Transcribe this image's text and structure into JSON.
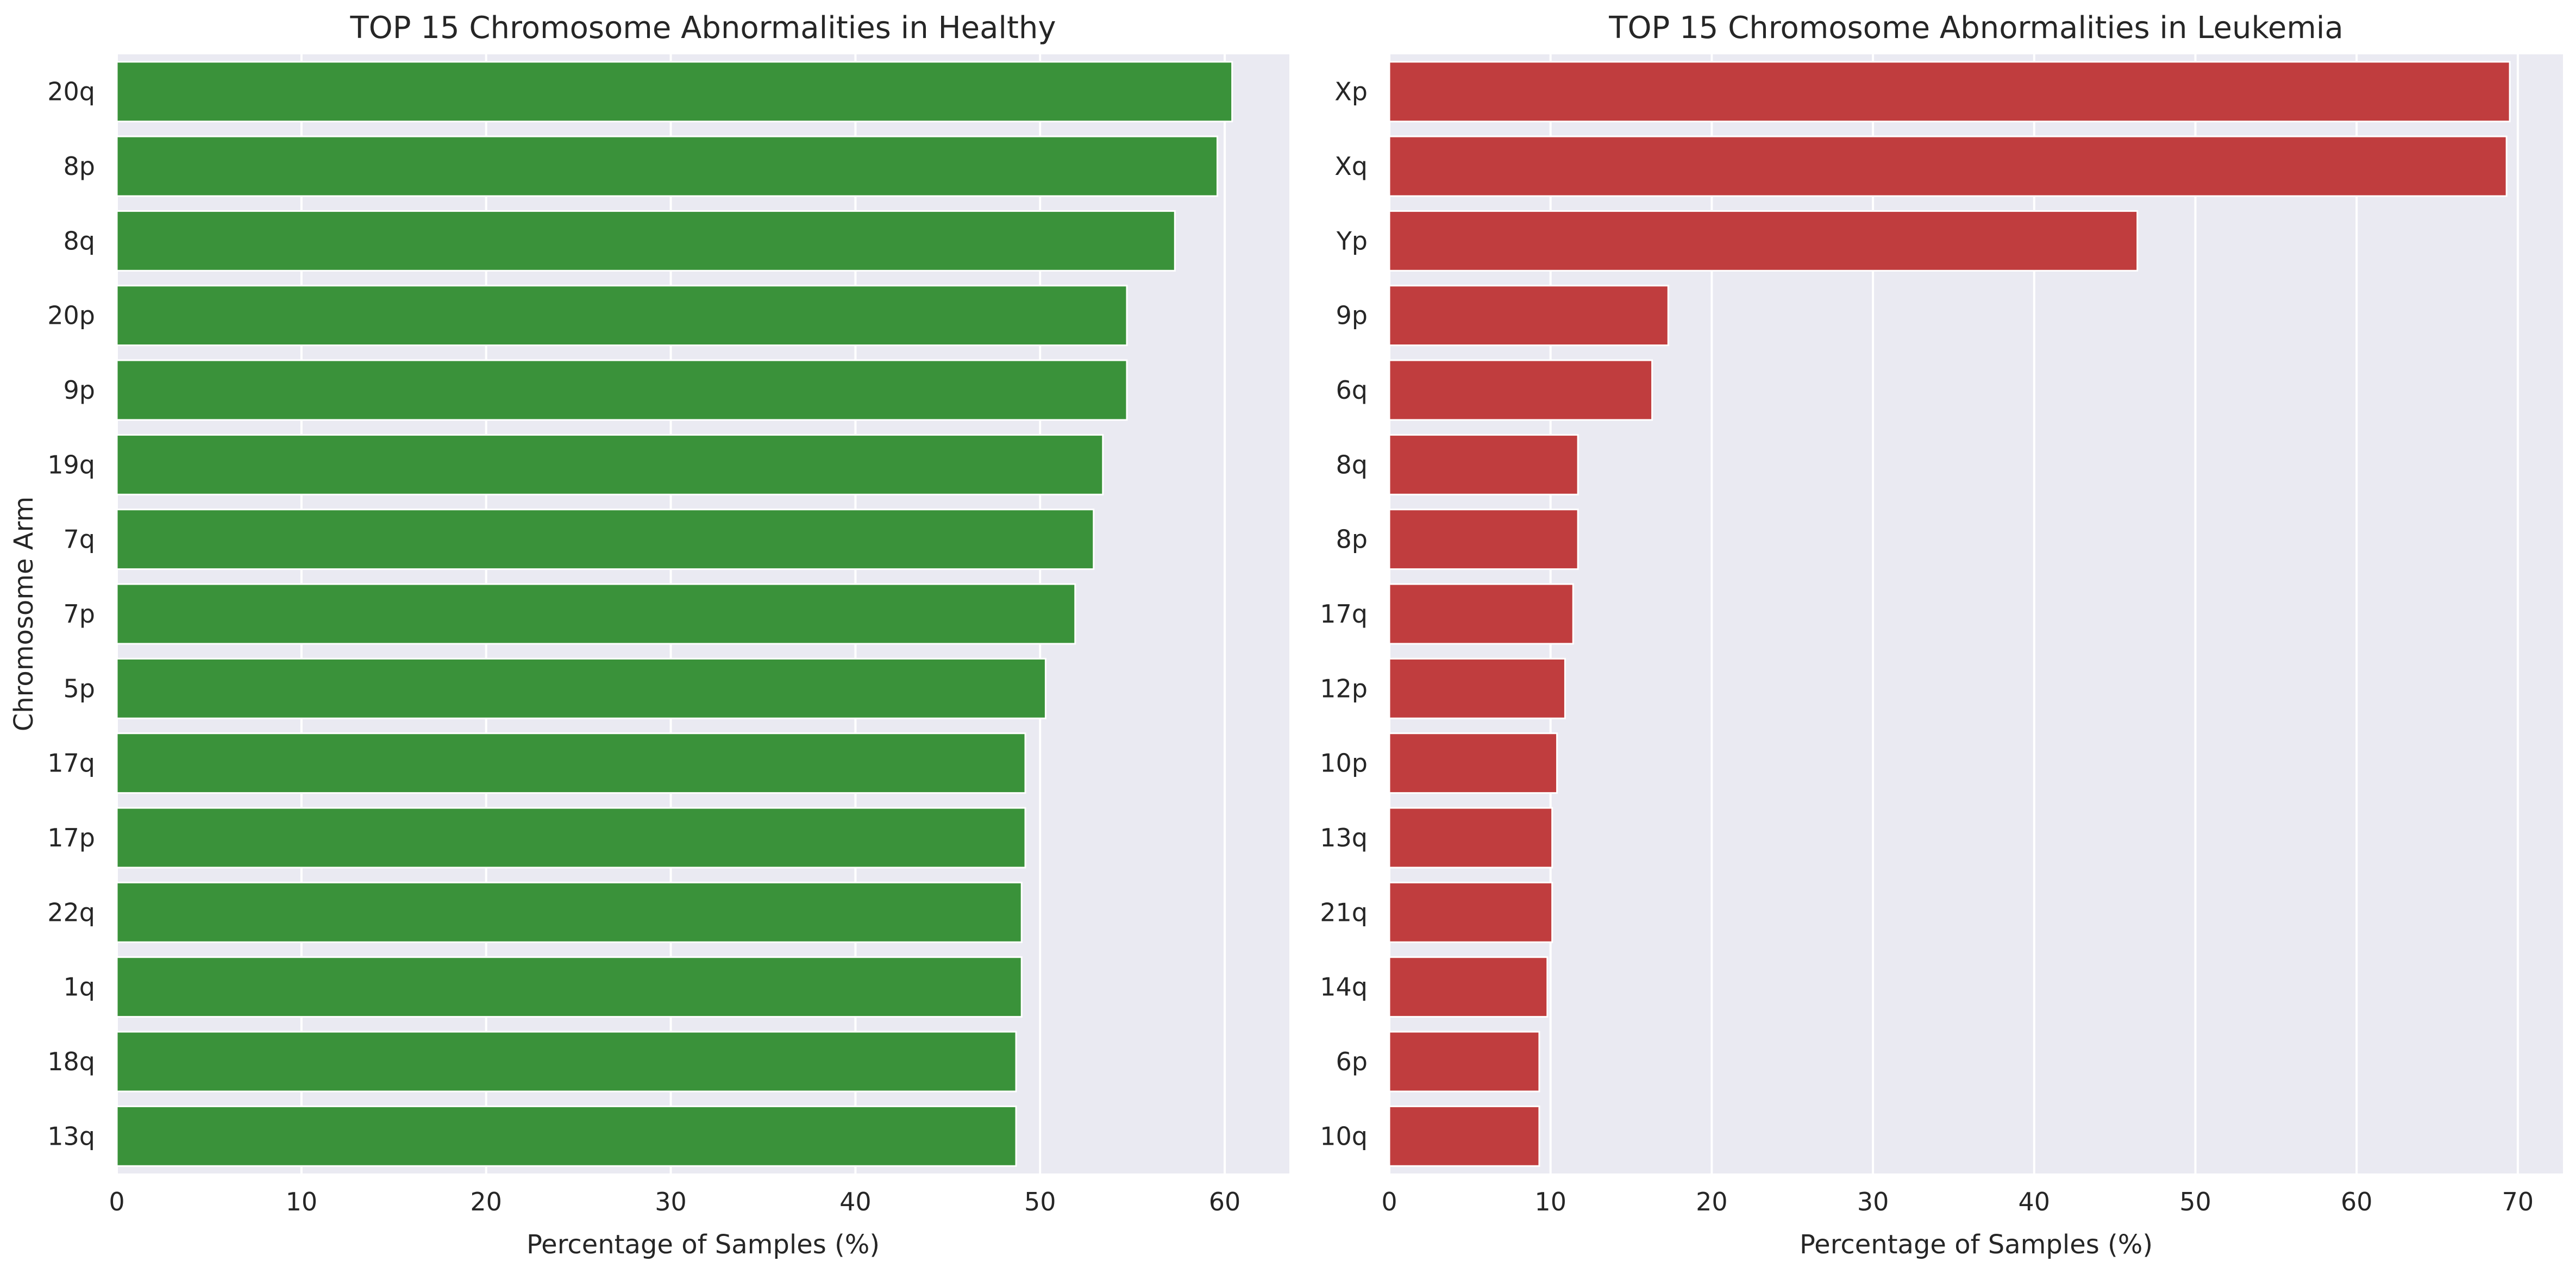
{
  "colors": {
    "healthy_bar": "#3a923a",
    "leukemia_bar": "#c03d3e",
    "plot_background": "#eaeaf2",
    "grid": "#ffffff",
    "text": "#262626"
  },
  "chart_data": [
    {
      "type": "bar",
      "orientation": "horizontal",
      "title": "TOP 15 Chromosome Abnormalities in Healthy",
      "xlabel": "Percentage of Samples (%)",
      "ylabel": "Chromosome Arm",
      "xlim": [
        0,
        63.5
      ],
      "xticks": [
        0,
        10,
        20,
        30,
        40,
        50,
        60
      ],
      "grid": true,
      "bar_color": "#3a923a",
      "categories": [
        "20q",
        "8p",
        "8q",
        "20p",
        "9p",
        "19q",
        "7q",
        "7p",
        "5p",
        "17q",
        "17p",
        "22q",
        "1q",
        "18q",
        "13q"
      ],
      "values": [
        60.4,
        59.6,
        57.3,
        54.7,
        54.7,
        53.4,
        52.9,
        51.9,
        50.3,
        49.2,
        49.2,
        49.0,
        49.0,
        48.7,
        48.7
      ]
    },
    {
      "type": "bar",
      "orientation": "horizontal",
      "title": "TOP 15 Chromosome Abnormalities in Leukemia",
      "xlabel": "Percentage of Samples (%)",
      "ylabel": "",
      "xlim": [
        0,
        72.8
      ],
      "xticks": [
        0,
        10,
        20,
        30,
        40,
        50,
        60,
        70
      ],
      "grid": true,
      "bar_color": "#c03d3e",
      "categories": [
        "Xp",
        "Xq",
        "Yp",
        "9p",
        "6q",
        "8q",
        "8p",
        "17q",
        "12p",
        "10p",
        "13q",
        "21q",
        "14q",
        "6p",
        "10q"
      ],
      "values": [
        69.5,
        69.3,
        46.4,
        17.3,
        16.3,
        11.7,
        11.7,
        11.4,
        10.9,
        10.4,
        10.1,
        10.1,
        9.8,
        9.3,
        9.3
      ]
    }
  ]
}
